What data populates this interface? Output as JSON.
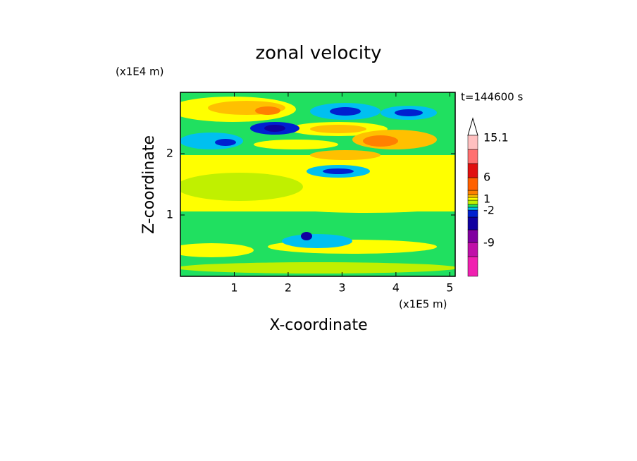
{
  "chart_data": {
    "type": "contour",
    "title": "zonal velocity",
    "x_label": "X-coordinate",
    "y_label": "Z-coordinate",
    "x_unit": "(x1E5 m)",
    "y_unit": "(x1E4 m)",
    "time_label": "t=144600 s",
    "xlim": [
      0,
      5.1
    ],
    "xticks": [
      1,
      2,
      3,
      4,
      5
    ],
    "ylim": [
      0,
      3
    ],
    "yticks": [
      1,
      2
    ],
    "colorbar": {
      "colors": [
        "#f020b0",
        "#c010a8",
        "#8000a0",
        "#1000a0",
        "#0020d0",
        "#00c0f0",
        "#20e060",
        "#c0f000",
        "#ffff00",
        "#ffc000",
        "#ff8000",
        "#ff6000",
        "#e01010",
        "#ff7070",
        "#ffc0c0"
      ],
      "labels": [
        15.1,
        6,
        1,
        -2,
        -9
      ]
    }
  }
}
